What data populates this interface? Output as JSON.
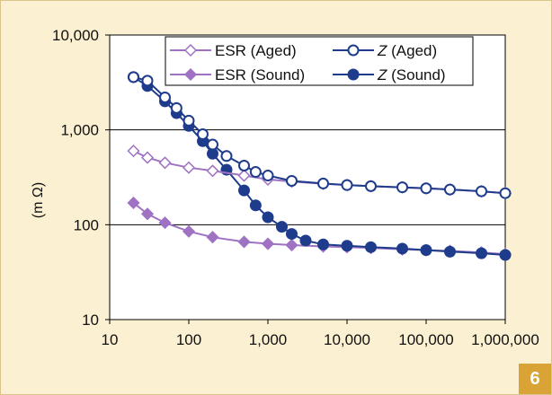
{
  "chart_data": {
    "type": "line",
    "x_scale": "log",
    "y_scale": "log",
    "xlim": [
      10,
      1000000
    ],
    "ylim": [
      10,
      10000
    ],
    "x_ticks": [
      "10",
      "100",
      "1,000",
      "10,000",
      "100,000",
      "1,000,000"
    ],
    "y_ticks": [
      "10",
      "100",
      "1,000",
      "10,000"
    ],
    "ylabel": "(m Ω)",
    "legend_position": "top-right",
    "series": [
      {
        "name": "ESR (Aged)",
        "color": "#9f72c4",
        "marker": "diamond-open",
        "x": [
          20,
          30,
          50,
          100,
          200,
          500,
          1000,
          2000,
          5000,
          10000,
          20000,
          50000,
          100000,
          200000,
          500000,
          1000000
        ],
        "y": [
          600,
          510,
          450,
          400,
          370,
          330,
          300,
          285,
          270,
          262,
          255,
          248,
          242,
          235,
          225,
          215
        ]
      },
      {
        "name": "ESR (Sound)",
        "color": "#9f72c4",
        "marker": "diamond-filled",
        "x": [
          20,
          30,
          50,
          100,
          200,
          500,
          1000,
          2000,
          5000,
          10000,
          20000,
          50000,
          100000,
          200000,
          500000,
          1000000
        ],
        "y": [
          170,
          130,
          105,
          85,
          74,
          66,
          63,
          61,
          59,
          58,
          57,
          55,
          54,
          53,
          51,
          49
        ]
      },
      {
        "name": "Z (Aged)",
        "name_parts": [
          "Z",
          " (Aged)"
        ],
        "color": "#1f3c8c",
        "marker": "circle-open",
        "x": [
          20,
          30,
          50,
          70,
          100,
          150,
          200,
          300,
          500,
          700,
          1000,
          2000,
          5000,
          10000,
          20000,
          50000,
          100000,
          200000,
          500000,
          1000000
        ],
        "y": [
          3600,
          3300,
          2200,
          1700,
          1250,
          900,
          700,
          530,
          420,
          360,
          330,
          290,
          272,
          262,
          255,
          248,
          242,
          235,
          225,
          215
        ]
      },
      {
        "name": "Z (Sound)",
        "name_parts": [
          "Z",
          " (Sound)"
        ],
        "color": "#1f3c8c",
        "marker": "circle-filled",
        "x": [
          20,
          30,
          50,
          70,
          100,
          150,
          200,
          300,
          500,
          700,
          1000,
          1500,
          2000,
          3000,
          5000,
          10000,
          20000,
          50000,
          100000,
          200000,
          500000,
          1000000
        ],
        "y": [
          3600,
          2900,
          2000,
          1500,
          1100,
          760,
          560,
          380,
          230,
          160,
          120,
          95,
          80,
          68,
          62,
          60,
          58,
          56,
          54,
          52,
          50,
          48
        ]
      }
    ]
  },
  "figure_number": "6"
}
